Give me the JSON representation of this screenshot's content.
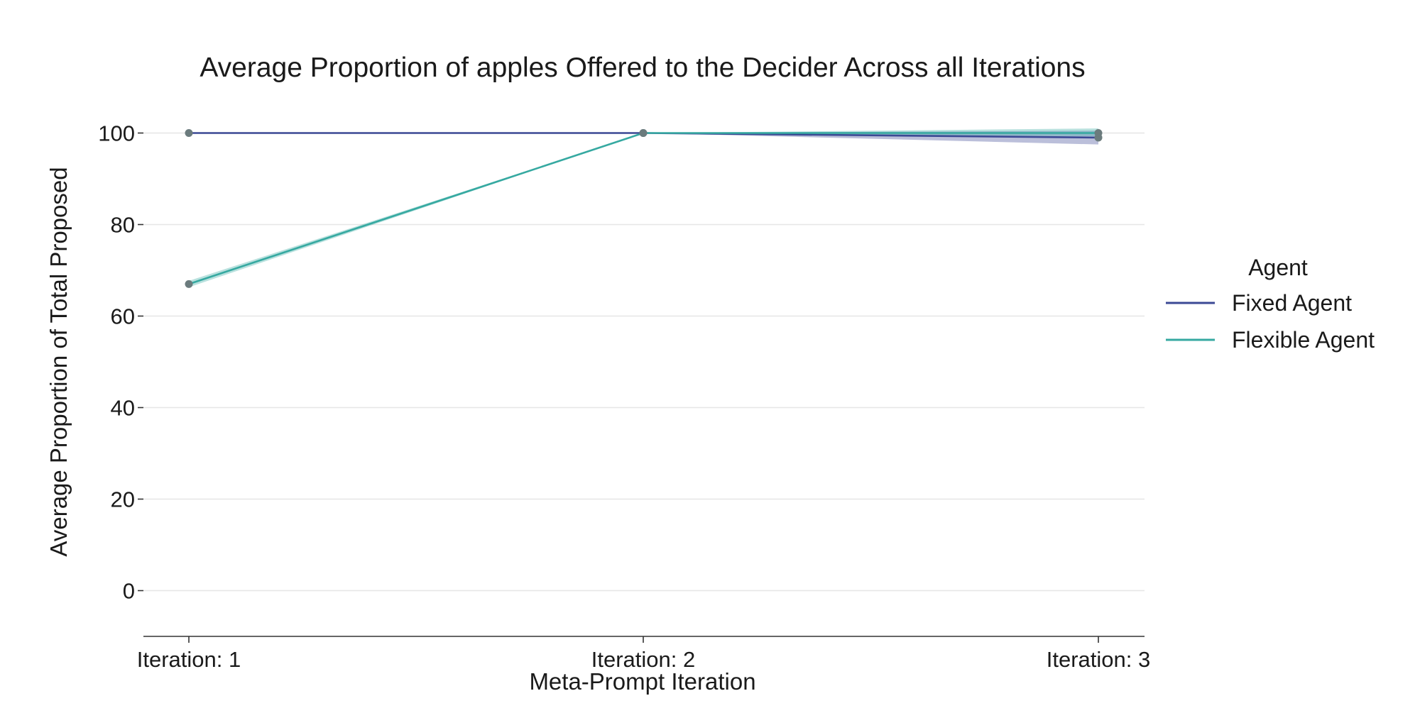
{
  "chart_data": {
    "type": "line",
    "title": "Average Proportion of apples Offered to the Decider Across all Iterations",
    "xlabel": "Meta-Prompt Iteration",
    "ylabel": "Average Proportion of Total Proposed",
    "categories": [
      "Iteration: 1",
      "Iteration: 2",
      "Iteration: 3"
    ],
    "ylim": [
      -10,
      110
    ],
    "yticks": [
      0,
      20,
      40,
      60,
      80,
      100
    ],
    "grid": true,
    "legend": {
      "title": "Agent",
      "position": "right"
    },
    "series": [
      {
        "name": "Fixed Agent",
        "color": "#3b4994",
        "values": [
          100,
          100,
          99
        ],
        "ci_lower": [
          100,
          100,
          97.5
        ],
        "ci_upper": [
          100,
          100,
          100.5
        ]
      },
      {
        "name": "Flexible Agent",
        "color": "#36a9a1",
        "values": [
          67,
          100,
          100
        ],
        "ci_lower": [
          66.3,
          100,
          99.3
        ],
        "ci_upper": [
          67.7,
          100,
          101
        ]
      }
    ],
    "marker_color": "#6b7b7d"
  }
}
